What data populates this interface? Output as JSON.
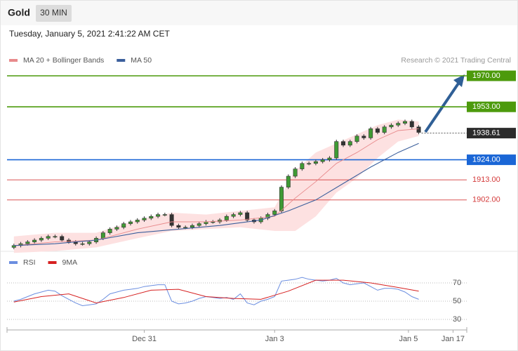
{
  "header": {
    "symbol": "Gold",
    "interval": "30 MIN",
    "timestamp": "Tuesday, January 5, 2021 2:41:22 AM CET"
  },
  "chart_data": [
    {
      "type": "candlestick",
      "source": "Research © 2021 Trading Central",
      "x": [
        0,
        1,
        2,
        3,
        4,
        5,
        6,
        7,
        8,
        9,
        10,
        11,
        12,
        13,
        14,
        15,
        16,
        17,
        18,
        19,
        20,
        21,
        22,
        23,
        24,
        25,
        26,
        27,
        28,
        29,
        30,
        31,
        32,
        33,
        34,
        35,
        36,
        37,
        38,
        39,
        40,
        41,
        42,
        43,
        44,
        45,
        46,
        47,
        48,
        49,
        50,
        51,
        52,
        53,
        54,
        55,
        56,
        57,
        58,
        59
      ],
      "open": [
        1876,
        1877,
        1878,
        1879,
        1880,
        1881,
        1882,
        1882,
        1880,
        1879,
        1878,
        1878,
        1879,
        1881,
        1884,
        1886,
        1887,
        1889,
        1890,
        1891,
        1892,
        1893,
        1894,
        1894,
        1888,
        1887,
        1887,
        1888,
        1889,
        1890,
        1890,
        1891,
        1893,
        1894,
        1895,
        1891,
        1890,
        1892,
        1894,
        1896,
        1909,
        1915,
        1919,
        1922,
        1922,
        1923,
        1924,
        1925,
        1934,
        1932,
        1934,
        1937,
        1936,
        1941,
        1939,
        1942,
        1943,
        1944,
        1945,
        1942
      ],
      "high": [
        1878,
        1879,
        1880,
        1881,
        1882,
        1883,
        1883,
        1883,
        1881,
        1880,
        1879,
        1880,
        1882,
        1885,
        1887,
        1888,
        1890,
        1891,
        1892,
        1893,
        1894,
        1895,
        1895,
        1895,
        1889,
        1888,
        1889,
        1890,
        1891,
        1891,
        1892,
        1894,
        1895,
        1896,
        1896,
        1892,
        1893,
        1895,
        1897,
        1910,
        1916,
        1920,
        1923,
        1923,
        1924,
        1925,
        1926,
        1935,
        1935,
        1935,
        1938,
        1938,
        1942,
        1942,
        1943,
        1944,
        1945,
        1946,
        1946,
        1943
      ],
      "low": [
        1875,
        1876,
        1877,
        1878,
        1879,
        1880,
        1881,
        1879,
        1878,
        1877,
        1877,
        1877,
        1878,
        1880,
        1883,
        1885,
        1886,
        1888,
        1889,
        1890,
        1891,
        1892,
        1893,
        1887,
        1886,
        1886,
        1886,
        1887,
        1888,
        1889,
        1889,
        1890,
        1892,
        1893,
        1890,
        1889,
        1889,
        1891,
        1893,
        1895,
        1908,
        1914,
        1918,
        1921,
        1921,
        1922,
        1923,
        1924,
        1931,
        1931,
        1933,
        1935,
        1935,
        1938,
        1938,
        1941,
        1942,
        1943,
        1941,
        1938
      ],
      "close": [
        1877,
        1878,
        1879,
        1880,
        1881,
        1882,
        1882,
        1880,
        1879,
        1878,
        1878,
        1879,
        1881,
        1884,
        1886,
        1887,
        1889,
        1890,
        1891,
        1892,
        1893,
        1894,
        1894,
        1888,
        1887,
        1887,
        1888,
        1889,
        1890,
        1890,
        1891,
        1893,
        1894,
        1895,
        1891,
        1890,
        1892,
        1894,
        1896,
        1909,
        1915,
        1919,
        1922,
        1922,
        1923,
        1924,
        1925,
        1934,
        1932,
        1934,
        1937,
        1936,
        1941,
        1939,
        1942,
        1943,
        1944,
        1945,
        1942,
        1939
      ],
      "up_color": "#3f9a34",
      "down_color": "#333333",
      "series": [
        {
          "name": "MA 20 + Bollinger Bands",
          "color": "#e88a8c",
          "band_color": "#fde1e1",
          "x": [
            0,
            6,
            12,
            18,
            23,
            28,
            33,
            38,
            41,
            44,
            47,
            50,
            53,
            56,
            59
          ],
          "values": [
            1877,
            1879,
            1880,
            1886,
            1890,
            1890,
            1891,
            1893,
            1903,
            1912,
            1922,
            1928,
            1935,
            1940,
            1941
          ],
          "upper": [
            1882,
            1884,
            1884,
            1891,
            1895,
            1894,
            1896,
            1898,
            1918,
            1928,
            1933,
            1938,
            1943,
            1946,
            1945
          ],
          "lower": [
            1873,
            1874,
            1876,
            1881,
            1885,
            1886,
            1887,
            1885,
            1885,
            1893,
            1906,
            1914,
            1925,
            1934,
            1937
          ]
        },
        {
          "name": "MA 50",
          "color": "#3b5f9c",
          "x": [
            0,
            6,
            12,
            18,
            24,
            30,
            36,
            40,
            44,
            48,
            52,
            56,
            59
          ],
          "values": [
            1877,
            1878,
            1880,
            1884,
            1886,
            1888,
            1891,
            1896,
            1902,
            1911,
            1920,
            1928,
            1933
          ]
        }
      ],
      "levels": [
        {
          "value": 1970,
          "label": "1970.00",
          "color": "#4c9a0c",
          "label_style": "box"
        },
        {
          "value": 1953,
          "label": "1953.00",
          "color": "#4c9a0c",
          "label_style": "box"
        },
        {
          "value": 1924,
          "label": "1924.00",
          "color": "#1a66d6",
          "label_style": "box"
        },
        {
          "value": 1913,
          "label": "1913.00",
          "color": "#d43a3a",
          "label_style": "text"
        },
        {
          "value": 1902,
          "label": "1902.00",
          "color": "#d43a3a",
          "label_style": "text"
        }
      ],
      "last_price": {
        "value": 1938.61,
        "label": "1938.61",
        "color": "#2b2b2b"
      },
      "xlim": [
        -1,
        66
      ],
      "ylim": [
        1875,
        1975
      ]
    },
    {
      "type": "line",
      "series": [
        {
          "name": "RSI",
          "color": "#6b8ee0",
          "x": [
            0,
            1,
            2,
            3,
            4,
            5,
            6,
            7,
            8,
            9,
            10,
            11,
            12,
            13,
            14,
            15,
            16,
            17,
            18,
            19,
            20,
            21,
            22,
            23,
            24,
            25,
            26,
            27,
            28,
            29,
            30,
            31,
            32,
            33,
            34,
            35,
            36,
            37,
            38,
            39,
            40,
            41,
            42,
            43,
            44,
            45,
            46,
            47,
            48,
            49,
            50,
            51,
            52,
            53,
            54,
            55,
            56,
            57,
            58,
            59
          ],
          "values": [
            50,
            52,
            55,
            58,
            60,
            62,
            61,
            56,
            52,
            48,
            45,
            46,
            47,
            52,
            58,
            60,
            62,
            63,
            64,
            66,
            67,
            68,
            68,
            50,
            47,
            48,
            50,
            53,
            55,
            54,
            53,
            54,
            52,
            58,
            48,
            46,
            50,
            52,
            55,
            72,
            73,
            74,
            76,
            74,
            73,
            72,
            73,
            75,
            70,
            68,
            69,
            70,
            66,
            62,
            64,
            64,
            63,
            60,
            55,
            52
          ]
        },
        {
          "name": "9MA",
          "color": "#d62020",
          "x": [
            0,
            4,
            8,
            12,
            16,
            20,
            24,
            28,
            32,
            36,
            40,
            44,
            48,
            52,
            56,
            59
          ],
          "values": [
            49,
            55,
            58,
            48,
            54,
            62,
            63,
            55,
            53,
            52,
            61,
            73,
            73,
            70,
            65,
            61
          ]
        }
      ],
      "xlim": [
        -1,
        66
      ],
      "ylim": [
        20,
        100
      ],
      "yticks": [
        30,
        50,
        70
      ],
      "grid": true,
      "xticks": [
        {
          "value": 19,
          "label": "Dec 31"
        },
        {
          "value": 38,
          "label": "Jan 3"
        },
        {
          "value": 57.5,
          "label": "Jan 5"
        },
        {
          "value": 64,
          "label": "Jan 17"
        }
      ]
    }
  ]
}
